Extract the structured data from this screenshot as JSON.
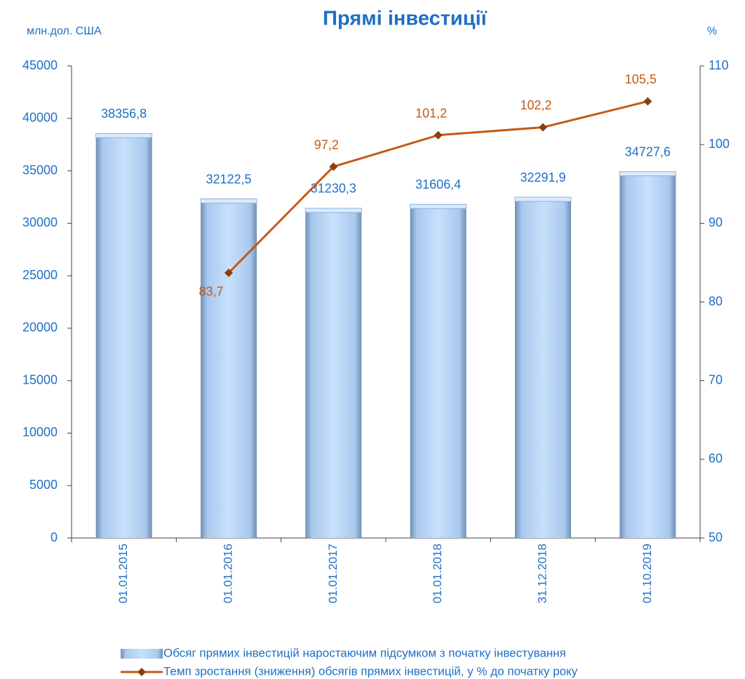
{
  "chart_data": {
    "type": "bar",
    "title": "Прямі інвестиції",
    "y_label": "млн.дол. США",
    "y2_label": "%",
    "categories": [
      "01.01.2015",
      "01.01.2016",
      "01.01.2017",
      "01.01.2018",
      "31.12.2018",
      "01.10.2019"
    ],
    "series": [
      {
        "name": "Обсяг прямих інвестицій наростаючим підсумком з початку інвестування",
        "type": "bar",
        "color": "#a9c9ee",
        "values": [
          38356.8,
          32122.5,
          31230.3,
          31606.4,
          32291.9,
          34727.6
        ],
        "value_labels": [
          "38356,8",
          "32122,5",
          "31230,3",
          "31606,4",
          "32291,9",
          "34727,6"
        ]
      },
      {
        "name": "Темп зростання (зниження) обсягів прямих інвестицій, у % до початку року",
        "type": "line",
        "axis": "y2",
        "color": "#c55a11",
        "values": [
          null,
          83.7,
          97.2,
          101.2,
          102.2,
          105.5
        ],
        "value_labels": [
          null,
          "83,7",
          "97,2",
          "101,2",
          "102,2",
          "105,5"
        ]
      }
    ],
    "ylim": [
      0,
      45000
    ],
    "yticks": [
      0,
      5000,
      10000,
      15000,
      20000,
      25000,
      30000,
      35000,
      40000,
      45000
    ],
    "y2lim": [
      50,
      110
    ],
    "y2ticks": [
      50,
      60,
      70,
      80,
      90,
      100,
      110
    ],
    "grid": false,
    "legend": "bottom"
  }
}
